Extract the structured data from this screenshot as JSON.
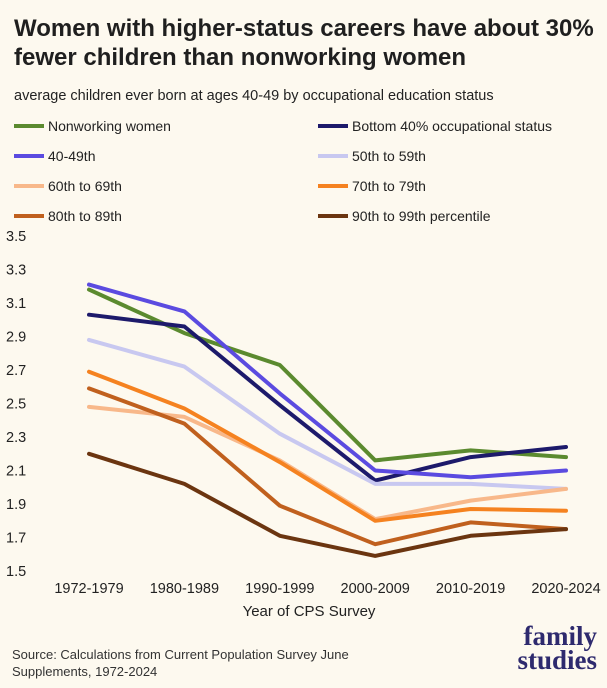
{
  "title": "Women with higher-status careers have about 30% fewer children than nonworking women",
  "subtitle": "average children ever born at ages 40-49 by occupational education status",
  "source": "Source: Calculations from Current Population Survey June Supplements, 1972-2024",
  "brand": {
    "line1": "family",
    "line2": "studies"
  },
  "chart_data": {
    "type": "line",
    "title": "Women with higher-status careers have about 30% fewer children than nonworking women",
    "subtitle": "average children ever born at ages 40-49 by occupational education status",
    "xlabel": "Year of CPS Survey",
    "ylabel": "",
    "categories": [
      "1972-1979",
      "1980-1989",
      "1990-1999",
      "2000-2009",
      "2010-2019",
      "2020-2024"
    ],
    "ylim": [
      1.5,
      3.5
    ],
    "yticks": [
      "3.5",
      "3.3",
      "3.1",
      "2.9",
      "2.7",
      "2.5",
      "2.3",
      "2.1",
      "1.9",
      "1.7",
      "1.5"
    ],
    "grid": false,
    "legend": "top",
    "series": [
      {
        "name": "Nonworking women",
        "color": "#5b8a2f",
        "values": [
          3.18,
          2.92,
          2.73,
          2.16,
          2.22,
          2.18
        ]
      },
      {
        "name": "Bottom 40% occupational status",
        "color": "#1d1a6b",
        "values": [
          3.03,
          2.96,
          2.49,
          2.04,
          2.18,
          2.24
        ]
      },
      {
        "name": "40-49th",
        "color": "#5b4be0",
        "values": [
          3.21,
          3.05,
          2.56,
          2.1,
          2.06,
          2.1
        ]
      },
      {
        "name": "50th to 59th",
        "color": "#c8c8f0",
        "values": [
          2.88,
          2.72,
          2.32,
          2.02,
          2.02,
          1.99
        ]
      },
      {
        "name": "60th to 69th",
        "color": "#f8b88a",
        "values": [
          2.48,
          2.42,
          2.16,
          1.81,
          1.92,
          1.99
        ]
      },
      {
        "name": "70th to 79th",
        "color": "#f58220",
        "values": [
          2.69,
          2.47,
          2.15,
          1.8,
          1.87,
          1.86
        ]
      },
      {
        "name": "80th to 89th",
        "color": "#c0601e",
        "values": [
          2.59,
          2.38,
          1.89,
          1.66,
          1.79,
          1.75
        ]
      },
      {
        "name": "90th to 99th percentile",
        "color": "#6b3510",
        "values": [
          2.2,
          2.02,
          1.71,
          1.59,
          1.71,
          1.75
        ]
      }
    ]
  }
}
